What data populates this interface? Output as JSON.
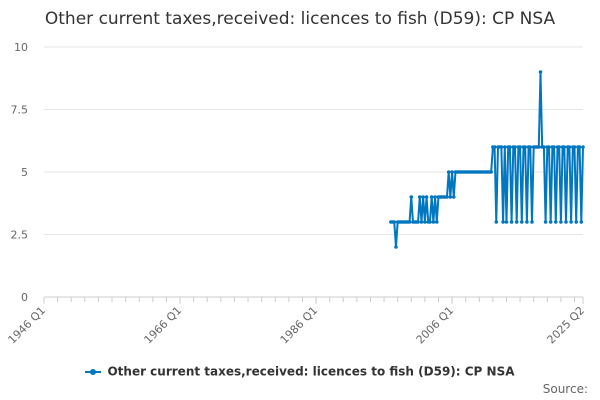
{
  "chart_data": {
    "type": "line",
    "title": "Other current taxes,received: licences to fish (D59): CP NSA",
    "xlabel": "",
    "ylabel": "",
    "x_start": "1946 Q1",
    "x_end": "2025 Q2",
    "xticks": [
      "1946 Q1",
      "1966 Q1",
      "1986 Q1",
      "2006 Q1",
      "2025 Q2"
    ],
    "ylim": [
      0,
      10
    ],
    "yticks": [
      0,
      2.5,
      5,
      7.5,
      10
    ],
    "ytick_labels": [
      "0",
      "2.5",
      "5",
      "7.5",
      "10"
    ],
    "grid": true,
    "legend_position": "bottom",
    "series": [
      {
        "name": "Other current taxes,received: licences to fish (D59): CP NSA",
        "color": "#0077c0",
        "points": [
          [
            "1997 Q1",
            3
          ],
          [
            "1997 Q2",
            3
          ],
          [
            "1997 Q3",
            3
          ],
          [
            "1997 Q4",
            2
          ],
          [
            "1998 Q1",
            3
          ],
          [
            "1998 Q2",
            3
          ],
          [
            "1998 Q3",
            3
          ],
          [
            "1998 Q4",
            3
          ],
          [
            "1999 Q1",
            3
          ],
          [
            "1999 Q2",
            3
          ],
          [
            "1999 Q3",
            3
          ],
          [
            "1999 Q4",
            3
          ],
          [
            "2000 Q1",
            4
          ],
          [
            "2000 Q2",
            3
          ],
          [
            "2000 Q3",
            3
          ],
          [
            "2000 Q4",
            3
          ],
          [
            "2001 Q1",
            3
          ],
          [
            "2001 Q2",
            4
          ],
          [
            "2001 Q3",
            3
          ],
          [
            "2001 Q4",
            4
          ],
          [
            "2002 Q1",
            3
          ],
          [
            "2002 Q2",
            4
          ],
          [
            "2002 Q3",
            3
          ],
          [
            "2002 Q4",
            3
          ],
          [
            "2003 Q1",
            4
          ],
          [
            "2003 Q2",
            3
          ],
          [
            "2003 Q3",
            4
          ],
          [
            "2003 Q4",
            3
          ],
          [
            "2004 Q1",
            4
          ],
          [
            "2004 Q2",
            4
          ],
          [
            "2004 Q3",
            4
          ],
          [
            "2004 Q4",
            4
          ],
          [
            "2005 Q1",
            4
          ],
          [
            "2005 Q2",
            4
          ],
          [
            "2005 Q3",
            5
          ],
          [
            "2005 Q4",
            4
          ],
          [
            "2006 Q1",
            5
          ],
          [
            "2006 Q2",
            4
          ],
          [
            "2006 Q3",
            5
          ],
          [
            "2006 Q4",
            5
          ],
          [
            "2007 Q1",
            5
          ],
          [
            "2007 Q2",
            5
          ],
          [
            "2007 Q3",
            5
          ],
          [
            "2007 Q4",
            5
          ],
          [
            "2008 Q1",
            5
          ],
          [
            "2008 Q2",
            5
          ],
          [
            "2008 Q3",
            5
          ],
          [
            "2008 Q4",
            5
          ],
          [
            "2009 Q1",
            5
          ],
          [
            "2009 Q2",
            5
          ],
          [
            "2009 Q3",
            5
          ],
          [
            "2009 Q4",
            5
          ],
          [
            "2010 Q1",
            5
          ],
          [
            "2010 Q2",
            5
          ],
          [
            "2010 Q3",
            5
          ],
          [
            "2010 Q4",
            5
          ],
          [
            "2011 Q1",
            5
          ],
          [
            "2011 Q2",
            5
          ],
          [
            "2011 Q3",
            5
          ],
          [
            "2011 Q4",
            5
          ],
          [
            "2012 Q1",
            6
          ],
          [
            "2012 Q2",
            6
          ],
          [
            "2012 Q3",
            3
          ],
          [
            "2012 Q4",
            6
          ],
          [
            "2013 Q1",
            6
          ],
          [
            "2013 Q2",
            6
          ],
          [
            "2013 Q3",
            3
          ],
          [
            "2013 Q4",
            6
          ],
          [
            "2014 Q1",
            3
          ],
          [
            "2014 Q2",
            6
          ],
          [
            "2014 Q3",
            6
          ],
          [
            "2014 Q4",
            3
          ],
          [
            "2015 Q1",
            6
          ],
          [
            "2015 Q2",
            6
          ],
          [
            "2015 Q3",
            3
          ],
          [
            "2015 Q4",
            6
          ],
          [
            "2016 Q1",
            6
          ],
          [
            "2016 Q2",
            3
          ],
          [
            "2016 Q3",
            6
          ],
          [
            "2016 Q4",
            6
          ],
          [
            "2017 Q1",
            3
          ],
          [
            "2017 Q2",
            6
          ],
          [
            "2017 Q3",
            6
          ],
          [
            "2017 Q4",
            3
          ],
          [
            "2018 Q1",
            6
          ],
          [
            "2018 Q2",
            6
          ],
          [
            "2018 Q3",
            6
          ],
          [
            "2018 Q4",
            6
          ],
          [
            "2019 Q1",
            9
          ],
          [
            "2019 Q2",
            6
          ],
          [
            "2019 Q3",
            6
          ],
          [
            "2019 Q4",
            3
          ],
          [
            "2020 Q1",
            6
          ],
          [
            "2020 Q2",
            6
          ],
          [
            "2020 Q3",
            3
          ],
          [
            "2020 Q4",
            6
          ],
          [
            "2021 Q1",
            6
          ],
          [
            "2021 Q2",
            3
          ],
          [
            "2021 Q3",
            6
          ],
          [
            "2021 Q4",
            6
          ],
          [
            "2022 Q1",
            3
          ],
          [
            "2022 Q2",
            6
          ],
          [
            "2022 Q3",
            6
          ],
          [
            "2022 Q4",
            3
          ],
          [
            "2023 Q1",
            6
          ],
          [
            "2023 Q2",
            6
          ],
          [
            "2023 Q3",
            3
          ],
          [
            "2023 Q4",
            6
          ],
          [
            "2024 Q1",
            6
          ],
          [
            "2024 Q2",
            3
          ],
          [
            "2024 Q3",
            6
          ],
          [
            "2024 Q4",
            6
          ],
          [
            "2025 Q1",
            3
          ],
          [
            "2025 Q2",
            6
          ]
        ]
      }
    ]
  },
  "source_label": "Source:"
}
